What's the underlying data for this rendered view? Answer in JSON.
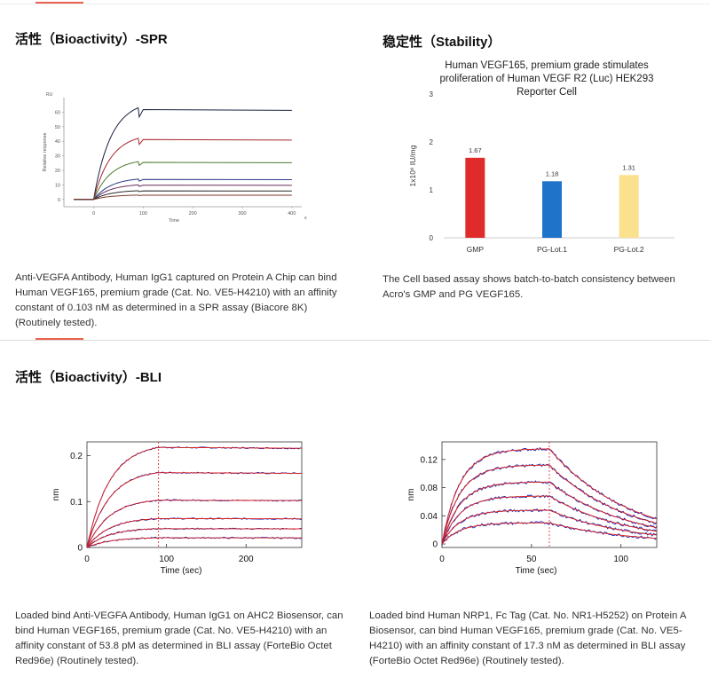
{
  "colors": {
    "accent": "#e8624f",
    "gmp": "#e02b2b",
    "lot1": "#1f73c8",
    "lot2": "#fbe08e",
    "fit": "#e0201e",
    "raw": "#1a2bb5"
  },
  "sections": {
    "spr_title": "活性（Bioactivity）-SPR",
    "stability_title": "稳定性（Stability）",
    "bli_title": "活性（Bioactivity）-BLI"
  },
  "captions": {
    "spr": "Anti-VEGFA Antibody, Human IgG1 captured on Protein A Chip can bind Human VEGF165, premium grade (Cat. No. VE5-H4210) with an affinity constant of 0.103 nM as determined in a SPR assay (Biacore 8K) (Routinely tested).",
    "stability": "The Cell based assay shows batch-to-batch consistency between Acro's GMP and PG VEGF165.",
    "bli1": "Loaded bind Anti-VEGFA Antibody, Human IgG1 on AHC2 Biosensor, can bind Human VEGF165, premium grade (Cat. No. VE5-H4210) with an affinity constant of 53.8 pM as determined in BLI assay (ForteBio Octet Red96e) (Routinely tested).",
    "bli2": "Loaded bind Human NRP1, Fc Tag (Cat. No. NR1-H5252) on Protein A Biosensor, can bind Human VEGF165, premium grade (Cat. No. VE5-H4210) with an affinity constant of 17.3 nM as determined in BLI assay (ForteBio Octet Red96e) (Routinely tested)."
  },
  "chart_data": [
    {
      "id": "spr",
      "type": "line",
      "title": "",
      "xlabel": "Time",
      "ylabel": "Relative response",
      "yunit": "RU",
      "xunit": "s",
      "xlim": [
        -60,
        420
      ],
      "ylim": [
        -5,
        70
      ],
      "xticks": [
        0,
        100,
        200,
        300,
        400
      ],
      "yticks": [
        0,
        10,
        20,
        30,
        40,
        50,
        60
      ],
      "association_end": 90,
      "series_plateaus": [
        63,
        42,
        26,
        14,
        10,
        6,
        3
      ]
    },
    {
      "id": "stability",
      "type": "bar",
      "title": "Human VEGF165, premium grade stimulates proliferation of Human VEGF R2 (Luc) HEK293 Reporter Cell",
      "ylabel": "1x10⁶ IU/mg",
      "categories": [
        "GMP",
        "PG-Lot.1",
        "PG-Lot.2"
      ],
      "values": [
        1.67,
        1.18,
        1.31
      ],
      "value_labels": [
        "1.67",
        "1.18",
        "1.31"
      ],
      "ylim": [
        0,
        3
      ],
      "yticks": [
        0,
        1,
        2,
        3
      ]
    },
    {
      "id": "bli1",
      "type": "line",
      "xlabel": "Time (sec)",
      "ylabel": "nm",
      "xlim": [
        0,
        270
      ],
      "ylim": [
        0,
        0.23
      ],
      "xticks": [
        0,
        100,
        200
      ],
      "yticks": [
        0,
        0.1,
        0.2
      ],
      "xtick_labels": [
        "0",
        "100",
        "200"
      ],
      "ytick_labels": [
        "0",
        "0.1",
        "0.2"
      ],
      "association_end": 90,
      "series_plateaus": [
        0.218,
        0.163,
        0.103,
        0.063,
        0.041,
        0.021
      ]
    },
    {
      "id": "bli2",
      "type": "line",
      "xlabel": "Time (sec)",
      "ylabel": "nm",
      "xlim": [
        0,
        120
      ],
      "ylim": [
        -0.005,
        0.145
      ],
      "xticks": [
        0,
        50,
        100
      ],
      "yticks": [
        0,
        0.04,
        0.08,
        0.12
      ],
      "xtick_labels": [
        "0",
        "50",
        "100"
      ],
      "ytick_labels": [
        "0",
        "0.04",
        "0.08",
        "0.12"
      ],
      "association_end": 60,
      "series_plateaus": [
        0.135,
        0.112,
        0.088,
        0.068,
        0.048,
        0.03
      ]
    }
  ]
}
